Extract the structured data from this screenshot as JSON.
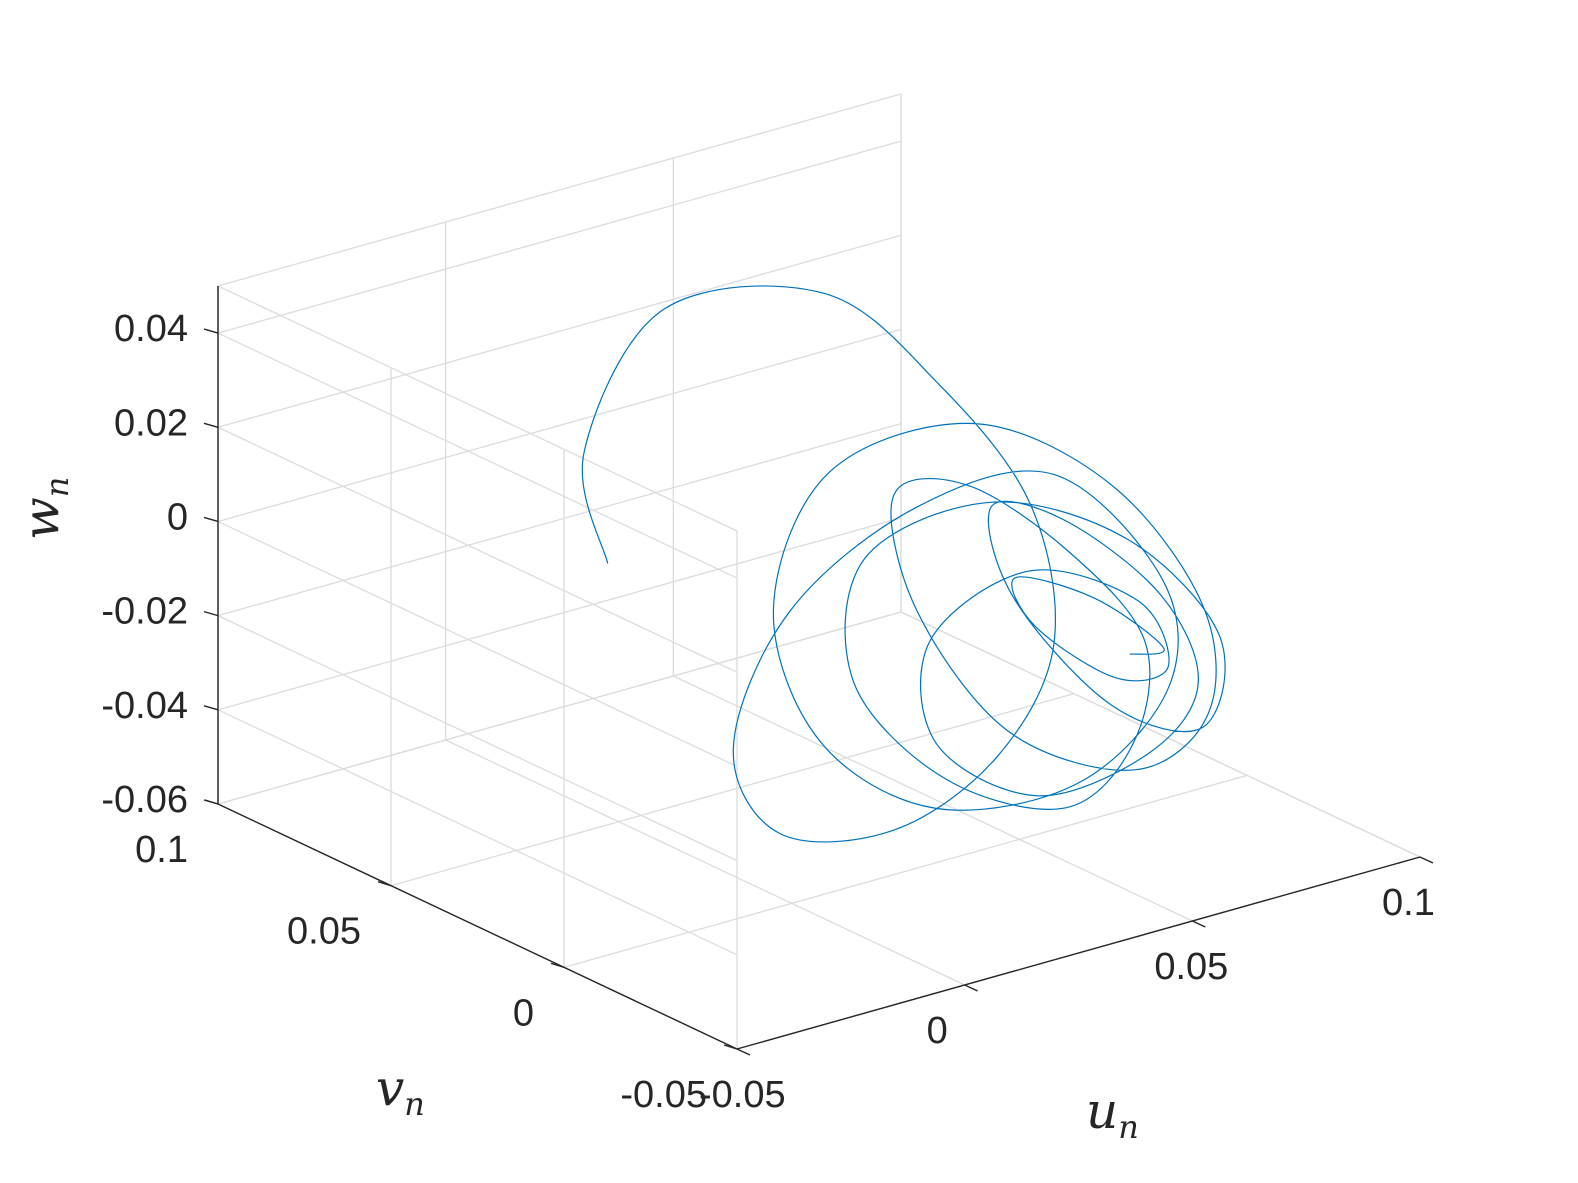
{
  "chart_data": {
    "type": "line",
    "projection": "3d",
    "title": "",
    "xlabel": {
      "base": "u",
      "sub": "n"
    },
    "ylabel": {
      "base": "v",
      "sub": "n"
    },
    "zlabel": {
      "base": "w",
      "sub": "n"
    },
    "xlim": [
      -0.05,
      0.1
    ],
    "ylim": [
      -0.05,
      0.1
    ],
    "zlim": [
      -0.06,
      0.05
    ],
    "x_ticks": [
      {
        "value": -0.05,
        "label": "-0.05"
      },
      {
        "value": 0,
        "label": "0"
      },
      {
        "value": 0.05,
        "label": "0.05"
      },
      {
        "value": 0.1,
        "label": "0.1"
      }
    ],
    "y_ticks": [
      {
        "value": -0.05,
        "label": "-0.05"
      },
      {
        "value": 0,
        "label": "0"
      },
      {
        "value": 0.05,
        "label": "0.05"
      },
      {
        "value": 0.1,
        "label": "0.1"
      }
    ],
    "z_ticks": [
      {
        "value": -0.06,
        "label": "-0.06"
      },
      {
        "value": -0.04,
        "label": "-0.04"
      },
      {
        "value": -0.02,
        "label": "-0.02"
      },
      {
        "value": 0,
        "label": "0"
      },
      {
        "value": 0.02,
        "label": "0.02"
      },
      {
        "value": 0.04,
        "label": "0.04"
      }
    ],
    "grid": true,
    "series": [
      {
        "color": "#0072bd",
        "description": "chaotic trajectory (phase portrait), densest near u≈0.05, v≈0, w≈-0.01",
        "points": [
          [
            -0.01,
            0.04,
            0.001
          ],
          [
            0.0,
            0.06,
            0.015
          ],
          [
            0.025,
            0.07,
            0.035
          ],
          [
            0.045,
            0.05,
            0.04
          ],
          [
            0.055,
            0.03,
            0.025
          ],
          [
            0.06,
            0.01,
            0.005
          ],
          [
            0.05,
            -0.01,
            -0.015
          ],
          [
            0.03,
            -0.02,
            -0.03
          ],
          [
            0.015,
            -0.01,
            -0.045
          ],
          [
            0.005,
            0.01,
            -0.05
          ],
          [
            0.01,
            0.03,
            -0.04
          ],
          [
            0.03,
            0.04,
            -0.02
          ],
          [
            0.05,
            0.03,
            0.0
          ],
          [
            0.065,
            0.01,
            0.01
          ],
          [
            0.07,
            -0.015,
            -0.005
          ],
          [
            0.06,
            -0.03,
            -0.02
          ],
          [
            0.04,
            -0.03,
            -0.035
          ],
          [
            0.02,
            -0.015,
            -0.04
          ],
          [
            0.01,
            0.005,
            -0.03
          ],
          [
            0.015,
            0.025,
            -0.01
          ],
          [
            0.035,
            0.035,
            0.01
          ],
          [
            0.055,
            0.02,
            0.02
          ],
          [
            0.07,
            0.0,
            0.01
          ],
          [
            0.075,
            -0.02,
            -0.01
          ],
          [
            0.065,
            -0.035,
            -0.025
          ],
          [
            0.045,
            -0.04,
            -0.03
          ],
          [
            0.025,
            -0.03,
            -0.02
          ],
          [
            0.02,
            -0.01,
            0.0
          ],
          [
            0.03,
            0.01,
            0.015
          ],
          [
            0.05,
            0.015,
            0.01
          ],
          [
            0.065,
            0.005,
            -0.005
          ],
          [
            0.07,
            -0.01,
            -0.02
          ],
          [
            0.06,
            -0.02,
            -0.035
          ],
          [
            0.045,
            -0.02,
            -0.045
          ],
          [
            0.03,
            -0.005,
            -0.04
          ],
          [
            0.025,
            0.015,
            -0.025
          ],
          [
            0.035,
            0.025,
            -0.005
          ],
          [
            0.055,
            0.015,
            0.005
          ],
          [
            0.07,
            -0.005,
            0.0
          ],
          [
            0.075,
            -0.025,
            -0.015
          ],
          [
            0.06,
            -0.04,
            -0.025
          ],
          [
            0.04,
            -0.04,
            -0.015
          ],
          [
            0.03,
            -0.025,
            0.005
          ],
          [
            0.04,
            -0.005,
            0.015
          ],
          [
            0.06,
            0.0,
            0.005
          ],
          [
            0.072,
            -0.012,
            -0.01
          ],
          [
            0.068,
            -0.028,
            -0.022
          ],
          [
            0.052,
            -0.035,
            -0.03
          ],
          [
            0.035,
            -0.025,
            -0.038
          ],
          [
            0.028,
            -0.005,
            -0.032
          ],
          [
            0.038,
            0.01,
            -0.018
          ],
          [
            0.058,
            0.008,
            -0.008
          ],
          [
            0.07,
            -0.008,
            -0.012
          ],
          [
            0.066,
            -0.022,
            -0.02
          ],
          [
            0.05,
            -0.028,
            -0.016
          ],
          [
            0.04,
            -0.018,
            -0.006
          ],
          [
            0.046,
            -0.004,
            -0.002
          ],
          [
            0.062,
            -0.006,
            -0.01
          ],
          [
            0.068,
            -0.018,
            -0.018
          ],
          [
            0.056,
            -0.024,
            -0.014
          ]
        ]
      }
    ]
  }
}
